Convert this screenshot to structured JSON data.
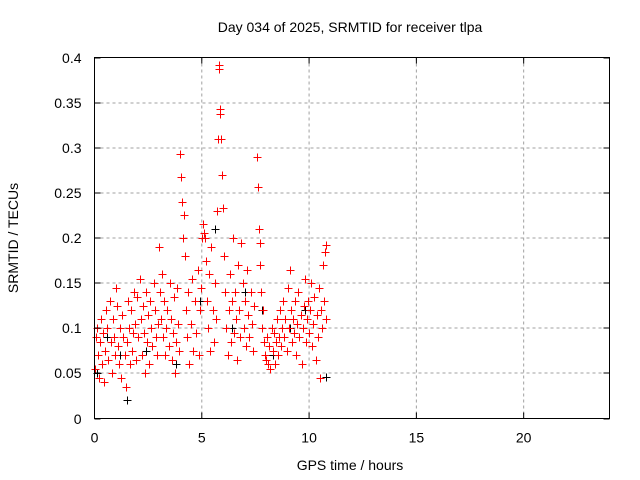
{
  "chart_data": {
    "type": "scatter",
    "title": "Day 034 of 2025, SRMTID for receiver tlpa",
    "xlabel": "GPS time / hours",
    "ylabel": "SRMTID / TECUs",
    "xlim": [
      0,
      24
    ],
    "ylim": [
      0,
      0.4
    ],
    "xticks": [
      0,
      5,
      10,
      15,
      20
    ],
    "xtick_labels": [
      "0",
      "5",
      "10",
      "15",
      "20"
    ],
    "yticks": [
      0,
      0.05,
      0.1,
      0.15,
      0.2,
      0.25,
      0.3,
      0.35,
      0.4
    ],
    "ytick_labels": [
      "0",
      "0.05",
      "0.1",
      "0.15",
      "0.2",
      "0.25",
      "0.3",
      "0.35",
      "0.4"
    ],
    "grid": true,
    "marker": "+",
    "series": [
      {
        "name": "black",
        "color": "#000000",
        "points": [
          [
            0.1,
            0.05
          ],
          [
            0.6,
            0.09
          ],
          [
            1.2,
            0.07
          ],
          [
            1.5,
            0.02
          ],
          [
            2.4,
            0.075
          ],
          [
            3.1,
            0.11
          ],
          [
            3.8,
            0.06
          ],
          [
            4.3,
            0.09
          ],
          [
            4.9,
            0.13
          ],
          [
            5.6,
            0.21
          ],
          [
            6.4,
            0.1
          ],
          [
            7.0,
            0.14
          ],
          [
            7.8,
            0.12
          ],
          [
            8.3,
            0.07
          ],
          [
            9.1,
            0.1
          ],
          [
            9.8,
            0.12
          ],
          [
            10.4,
            0.09
          ],
          [
            10.8,
            0.046
          ]
        ]
      },
      {
        "name": "red",
        "color": "#ff0000",
        "points": [
          [
            0.0,
            0.055
          ],
          [
            0.05,
            0.09
          ],
          [
            0.1,
            0.1
          ],
          [
            0.15,
            0.07
          ],
          [
            0.2,
            0.045
          ],
          [
            0.25,
            0.085
          ],
          [
            0.3,
            0.11
          ],
          [
            0.35,
            0.06
          ],
          [
            0.4,
            0.095
          ],
          [
            0.45,
            0.04
          ],
          [
            0.5,
            0.075
          ],
          [
            0.55,
            0.12
          ],
          [
            0.6,
            0.1
          ],
          [
            0.65,
            0.065
          ],
          [
            0.7,
            0.13
          ],
          [
            0.75,
            0.085
          ],
          [
            0.8,
            0.05
          ],
          [
            0.85,
            0.11
          ],
          [
            0.9,
            0.09
          ],
          [
            0.95,
            0.07
          ],
          [
            1.0,
            0.145
          ],
          [
            1.05,
            0.125
          ],
          [
            1.1,
            0.08
          ],
          [
            1.15,
            0.06
          ],
          [
            1.2,
            0.1
          ],
          [
            1.25,
            0.045
          ],
          [
            1.3,
            0.115
          ],
          [
            1.35,
            0.09
          ],
          [
            1.4,
            0.07
          ],
          [
            1.45,
            0.035
          ],
          [
            1.5,
            0.085
          ],
          [
            1.55,
            0.13
          ],
          [
            1.6,
            0.1
          ],
          [
            1.65,
            0.06
          ],
          [
            1.7,
            0.12
          ],
          [
            1.75,
            0.075
          ],
          [
            1.8,
            0.095
          ],
          [
            1.85,
            0.14
          ],
          [
            1.9,
            0.105
          ],
          [
            1.95,
            0.065
          ],
          [
            2.0,
            0.135
          ],
          [
            2.05,
            0.09
          ],
          [
            2.1,
            0.155
          ],
          [
            2.15,
            0.11
          ],
          [
            2.2,
            0.07
          ],
          [
            2.25,
            0.125
          ],
          [
            2.3,
            0.095
          ],
          [
            2.35,
            0.05
          ],
          [
            2.4,
            0.14
          ],
          [
            2.45,
            0.085
          ],
          [
            2.5,
            0.115
          ],
          [
            2.55,
            0.06
          ],
          [
            2.6,
            0.13
          ],
          [
            2.65,
            0.1
          ],
          [
            2.7,
            0.08
          ],
          [
            2.75,
            0.15
          ],
          [
            2.8,
            0.12
          ],
          [
            2.85,
            0.09
          ],
          [
            2.9,
            0.07
          ],
          [
            2.95,
            0.105
          ],
          [
            3.0,
            0.19
          ],
          [
            3.05,
            0.14
          ],
          [
            3.1,
            0.11
          ],
          [
            3.15,
            0.16
          ],
          [
            3.2,
            0.09
          ],
          [
            3.25,
            0.13
          ],
          [
            3.3,
            0.07
          ],
          [
            3.35,
            0.1
          ],
          [
            3.4,
            0.12
          ],
          [
            3.45,
            0.08
          ],
          [
            3.5,
            0.15
          ],
          [
            3.55,
            0.11
          ],
          [
            3.6,
            0.065
          ],
          [
            3.65,
            0.095
          ],
          [
            3.7,
            0.135
          ],
          [
            3.75,
            0.05
          ],
          [
            3.8,
            0.085
          ],
          [
            3.85,
            0.145
          ],
          [
            3.9,
            0.105
          ],
          [
            3.95,
            0.075
          ],
          [
            4.0,
            0.293
          ],
          [
            4.05,
            0.268
          ],
          [
            4.1,
            0.24
          ],
          [
            4.12,
            0.2
          ],
          [
            4.15,
            0.225
          ],
          [
            4.2,
            0.18
          ],
          [
            4.25,
            0.12
          ],
          [
            4.3,
            0.09
          ],
          [
            4.35,
            0.14
          ],
          [
            4.4,
            0.06
          ],
          [
            4.5,
            0.105
          ],
          [
            4.55,
            0.155
          ],
          [
            4.6,
            0.075
          ],
          [
            4.7,
            0.13
          ],
          [
            4.75,
            0.095
          ],
          [
            4.8,
            0.165
          ],
          [
            4.85,
            0.07
          ],
          [
            4.9,
            0.12
          ],
          [
            4.95,
            0.145
          ],
          [
            5.0,
            0.2
          ],
          [
            5.05,
            0.215
          ],
          [
            5.1,
            0.205
          ],
          [
            5.15,
            0.2
          ],
          [
            5.2,
            0.175
          ],
          [
            5.25,
            0.13
          ],
          [
            5.3,
            0.1
          ],
          [
            5.35,
            0.16
          ],
          [
            5.4,
            0.075
          ],
          [
            5.45,
            0.19
          ],
          [
            5.5,
            0.12
          ],
          [
            5.55,
            0.085
          ],
          [
            5.6,
            0.15
          ],
          [
            5.65,
            0.11
          ],
          [
            5.7,
            0.23
          ],
          [
            5.75,
            0.31
          ],
          [
            5.8,
            0.392
          ],
          [
            5.82,
            0.387
          ],
          [
            5.85,
            0.343
          ],
          [
            5.87,
            0.337
          ],
          [
            5.9,
            0.31
          ],
          [
            5.95,
            0.27
          ],
          [
            6.0,
            0.233
          ],
          [
            6.05,
            0.18
          ],
          [
            6.1,
            0.14
          ],
          [
            6.15,
            0.1
          ],
          [
            6.2,
            0.07
          ],
          [
            6.25,
            0.12
          ],
          [
            6.3,
            0.16
          ],
          [
            6.35,
            0.085
          ],
          [
            6.4,
            0.13
          ],
          [
            6.45,
            0.2
          ],
          [
            6.5,
            0.095
          ],
          [
            6.55,
            0.14
          ],
          [
            6.6,
            0.11
          ],
          [
            6.65,
            0.065
          ],
          [
            6.7,
            0.17
          ],
          [
            6.75,
            0.12
          ],
          [
            6.8,
            0.09
          ],
          [
            6.85,
            0.195
          ],
          [
            6.9,
            0.15
          ],
          [
            6.95,
            0.1
          ],
          [
            7.0,
            0.13
          ],
          [
            7.05,
            0.08
          ],
          [
            7.1,
            0.165
          ],
          [
            7.15,
            0.115
          ],
          [
            7.2,
            0.09
          ],
          [
            7.3,
            0.14
          ],
          [
            7.35,
            0.105
          ],
          [
            7.4,
            0.075
          ],
          [
            7.45,
            0.125
          ],
          [
            7.55,
            0.29
          ],
          [
            7.6,
            0.256
          ],
          [
            7.65,
            0.21
          ],
          [
            7.7,
            0.195
          ],
          [
            7.72,
            0.17
          ],
          [
            7.75,
            0.14
          ],
          [
            7.8,
            0.1
          ],
          [
            7.85,
            0.12
          ],
          [
            7.9,
            0.085
          ],
          [
            7.95,
            0.07
          ],
          [
            8.0,
            0.065
          ],
          [
            8.05,
            0.09
          ],
          [
            8.1,
            0.06
          ],
          [
            8.15,
            0.08
          ],
          [
            8.2,
            0.055
          ],
          [
            8.25,
            0.1
          ],
          [
            8.3,
            0.075
          ],
          [
            8.35,
            0.095
          ],
          [
            8.4,
            0.06
          ],
          [
            8.45,
            0.085
          ],
          [
            8.5,
            0.11
          ],
          [
            8.55,
            0.07
          ],
          [
            8.6,
            0.09
          ],
          [
            8.65,
            0.12
          ],
          [
            8.7,
            0.08
          ],
          [
            8.75,
            0.1
          ],
          [
            8.8,
            0.13
          ],
          [
            8.85,
            0.09
          ],
          [
            8.9,
            0.11
          ],
          [
            8.95,
            0.075
          ],
          [
            9.0,
            0.145
          ],
          [
            9.05,
            0.1
          ],
          [
            9.1,
            0.165
          ],
          [
            9.15,
            0.12
          ],
          [
            9.2,
            0.085
          ],
          [
            9.25,
            0.11
          ],
          [
            9.3,
            0.095
          ],
          [
            9.35,
            0.13
          ],
          [
            9.4,
            0.07
          ],
          [
            9.45,
            0.105
          ],
          [
            9.5,
            0.14
          ],
          [
            9.55,
            0.09
          ],
          [
            9.6,
            0.115
          ],
          [
            9.65,
            0.06
          ],
          [
            9.7,
            0.1
          ],
          [
            9.75,
            0.125
          ],
          [
            9.8,
            0.155
          ],
          [
            9.85,
            0.085
          ],
          [
            9.9,
            0.11
          ],
          [
            9.95,
            0.13
          ],
          [
            10.0,
            0.095
          ],
          [
            10.05,
            0.12
          ],
          [
            10.1,
            0.15
          ],
          [
            10.15,
            0.08
          ],
          [
            10.2,
            0.105
          ],
          [
            10.25,
            0.135
          ],
          [
            10.3,
            0.065
          ],
          [
            10.35,
            0.115
          ],
          [
            10.4,
            0.09
          ],
          [
            10.45,
            0.145
          ],
          [
            10.5,
            0.045
          ],
          [
            10.55,
            0.12
          ],
          [
            10.6,
            0.1
          ],
          [
            10.65,
            0.17
          ],
          [
            10.7,
            0.13
          ],
          [
            10.75,
            0.185
          ],
          [
            10.78,
            0.192
          ],
          [
            10.8,
            0.11
          ]
        ]
      }
    ]
  }
}
